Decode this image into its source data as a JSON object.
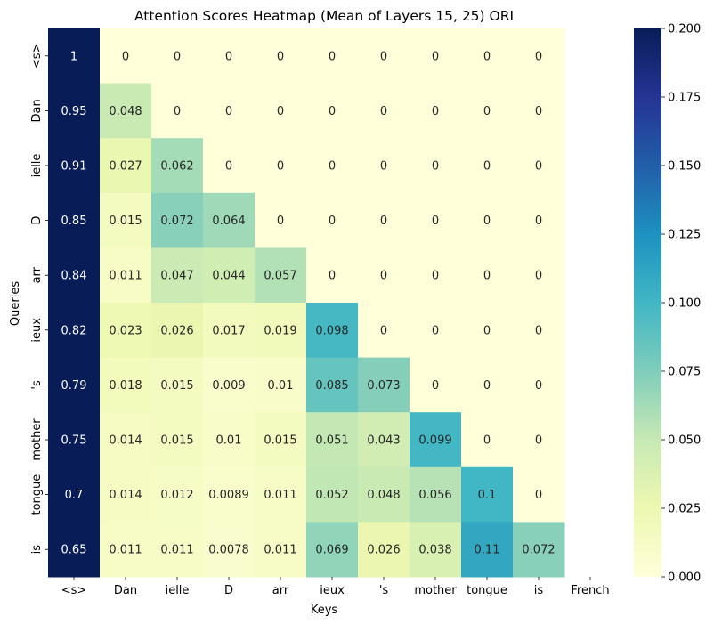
{
  "chart_data": {
    "type": "heatmap",
    "title": "Attention Scores Heatmap (Mean of Layers 15, 25) ORI",
    "xlabel": "Keys",
    "ylabel": "Queries",
    "x_categories": [
      "<s>",
      "Dan",
      "ielle",
      "D",
      "arr",
      "ieux",
      "'s",
      "mother",
      "tongue",
      "is",
      "French"
    ],
    "y_categories": [
      "<s>",
      "Dan",
      "ielle",
      "D",
      "arr",
      "ieux",
      "'s",
      "mother",
      "tongue",
      "is"
    ],
    "values": [
      [
        1,
        0,
        0,
        0,
        0,
        0,
        0,
        0,
        0,
        0,
        null
      ],
      [
        0.95,
        0.048,
        0,
        0,
        0,
        0,
        0,
        0,
        0,
        0,
        null
      ],
      [
        0.91,
        0.027,
        0.062,
        0,
        0,
        0,
        0,
        0,
        0,
        0,
        null
      ],
      [
        0.85,
        0.015,
        0.072,
        0.064,
        0,
        0,
        0,
        0,
        0,
        0,
        null
      ],
      [
        0.84,
        0.011,
        0.047,
        0.044,
        0.057,
        0,
        0,
        0,
        0,
        0,
        null
      ],
      [
        0.82,
        0.023,
        0.026,
        0.017,
        0.019,
        0.098,
        0,
        0,
        0,
        0,
        null
      ],
      [
        0.79,
        0.018,
        0.015,
        0.009,
        0.01,
        0.085,
        0.073,
        0,
        0,
        0,
        null
      ],
      [
        0.75,
        0.014,
        0.015,
        0.01,
        0.015,
        0.051,
        0.043,
        0.099,
        0,
        0,
        null
      ],
      [
        0.7,
        0.014,
        0.012,
        0.0089,
        0.011,
        0.052,
        0.048,
        0.056,
        0.1,
        0,
        null
      ],
      [
        0.65,
        0.011,
        0.011,
        0.0078,
        0.011,
        0.069,
        0.026,
        0.038,
        0.11,
        0.072,
        null
      ]
    ],
    "colorscale": "YlGnBu",
    "vmin": 0,
    "vmax": 0.2,
    "colorbar_ticks": [
      "0.000",
      "0.025",
      "0.050",
      "0.075",
      "0.100",
      "0.125",
      "0.150",
      "0.175",
      "0.200"
    ]
  }
}
